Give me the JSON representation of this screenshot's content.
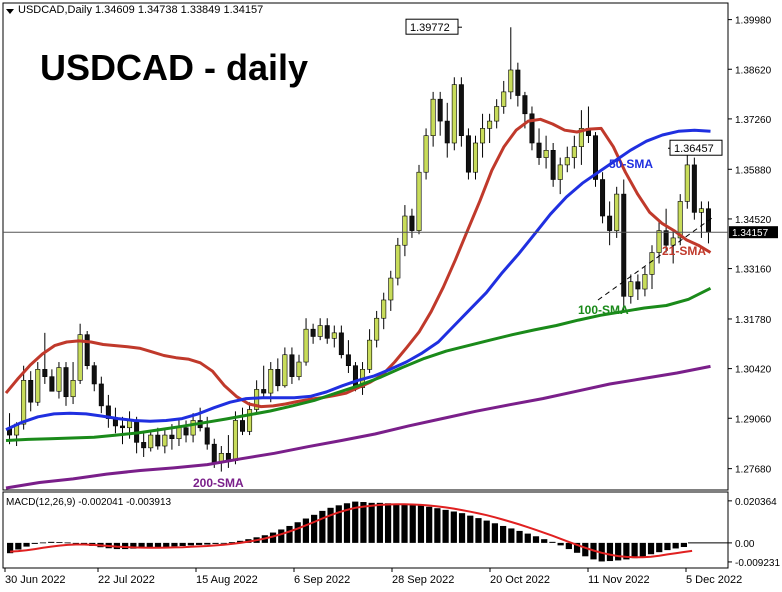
{
  "window": {
    "header": "USDCAD,Daily  1.34609 1.34738 1.33849 1.34157",
    "menu_icon": "triangle-down-icon"
  },
  "overlay_title": "USDCAD - daily",
  "colors": {
    "sma21": "#c0392b",
    "sma50": "#1f2fe0",
    "sma100": "#1a8a1a",
    "sma200": "#7a1f8a",
    "macd_hist": "#000000",
    "macd_signal": "#e02020",
    "sma21_label": "#c0392b",
    "sma50_label": "#1f2fe0",
    "sma100_label": "#1a8a1a",
    "sma200_label": "#7a1f8a",
    "bull_body": "#c8dc5a",
    "bear_body": "#111111"
  },
  "chart_data": {
    "type": "line",
    "x_tick_labels": [
      "30 Jun 2022",
      "22 Jul 2022",
      "15 Aug 2022",
      "6 Sep 2022",
      "28 Sep 2022",
      "20 Oct 2022",
      "11 Nov 2022",
      "5 Dec 2022"
    ],
    "y_tick_labels": [
      "1.39980",
      "1.38620",
      "1.37260",
      "1.35880",
      "1.34520",
      "1.33160",
      "1.31780",
      "1.30420",
      "1.29060",
      "1.27680"
    ],
    "ylim": [
      1.2715,
      1.4038
    ],
    "last_price_label": "1.34157",
    "last_price": 1.34157,
    "annotations": [
      {
        "text": "1.39772",
        "value": 1.39772
      },
      {
        "text": "1.36457",
        "value": 1.36457
      }
    ],
    "series": [
      {
        "name": "21-SMA",
        "values": [
          1.2975,
          1.3015,
          1.3052,
          1.3082,
          1.3105,
          1.3115,
          1.3118,
          1.3115,
          1.3108,
          1.3105,
          1.3102,
          1.3098,
          1.3088,
          1.3078,
          1.3072,
          1.3068,
          1.3058,
          1.3035,
          1.2995,
          1.2965,
          1.2945,
          1.2938,
          1.294,
          1.2945,
          1.2952,
          1.2958,
          1.2962,
          1.2968,
          1.2975,
          1.299,
          1.3005,
          1.3025,
          1.306,
          1.31,
          1.3142,
          1.3198,
          1.3265,
          1.334,
          1.342,
          1.35,
          1.3585,
          1.365,
          1.3695,
          1.372,
          1.3725,
          1.3712,
          1.3695,
          1.369,
          1.3698,
          1.37,
          1.365,
          1.358,
          1.352,
          1.347,
          1.344,
          1.342,
          1.3395,
          1.338,
          1.336
        ]
      },
      {
        "name": "50-SMA",
        "values": [
          1.2875,
          1.2895,
          1.291,
          1.2918,
          1.292,
          1.2918,
          1.2912,
          1.2905,
          1.29,
          1.2898,
          1.29,
          1.2905,
          1.2918,
          1.2935,
          1.295,
          1.296,
          1.2962,
          1.2962,
          1.2962,
          1.2966,
          1.2978,
          1.2995,
          1.301,
          1.3022,
          1.304,
          1.306,
          1.3085,
          1.3115,
          1.316,
          1.3205,
          1.325,
          1.3305,
          1.3355,
          1.341,
          1.3465,
          1.3512,
          1.355,
          1.358,
          1.361,
          1.364,
          1.3665,
          1.3682,
          1.3692,
          1.3695,
          1.3692
        ]
      },
      {
        "name": "100-SMA",
        "values": [
          1.2845,
          1.2848,
          1.285,
          1.2852,
          1.2854,
          1.286,
          1.2866,
          1.2875,
          1.2884,
          1.2894,
          1.2904,
          1.2915,
          1.2926,
          1.294,
          1.2955,
          1.2975,
          1.2995,
          1.3018,
          1.3045,
          1.307,
          1.309,
          1.3105,
          1.312,
          1.3135,
          1.3148,
          1.316,
          1.3175,
          1.3188,
          1.3198,
          1.3208,
          1.3215,
          1.3232,
          1.3262
        ]
      },
      {
        "name": "200-SMA",
        "values": [
          1.2715,
          1.273,
          1.274,
          1.2753,
          1.2763,
          1.277,
          1.2779,
          1.2795,
          1.281,
          1.2828,
          1.2845,
          1.2863,
          1.2885,
          1.2905,
          1.2925,
          1.2943,
          1.296,
          1.298,
          1.3,
          1.3015,
          1.303,
          1.3048
        ]
      }
    ],
    "series_labels": {
      "sma21": "21-SMA",
      "sma50": "50-SMA",
      "sma100": "100-SMA",
      "sma200": "200-SMA"
    }
  },
  "macd": {
    "header": "MACD(12,26,9) -0.002041 -0.003913",
    "y_tick_labels": [
      "0.020364",
      "0.00",
      "-0.009231"
    ],
    "ylim": [
      -0.0112,
      0.0232
    ],
    "hist": [
      -0.005,
      -0.0032,
      -0.0018,
      -0.0005,
      0.0002,
      0.0005,
      0.0004,
      0.0002,
      -0.0002,
      -0.0008,
      -0.0015,
      -0.0021,
      -0.0026,
      -0.003,
      -0.003,
      -0.0028,
      -0.0027,
      -0.0025,
      -0.0022,
      -0.002,
      -0.0017,
      -0.0015,
      -0.0012,
      -0.001,
      -0.0008,
      -0.0005,
      -0.0001,
      0.0004,
      0.001,
      0.0018,
      0.0027,
      0.0037,
      0.005,
      0.0065,
      0.0082,
      0.01,
      0.0118,
      0.0136,
      0.0155,
      0.017,
      0.0182,
      0.0192,
      0.02,
      0.0198,
      0.0194,
      0.0194,
      0.0192,
      0.019,
      0.0188,
      0.0185,
      0.0182,
      0.0175,
      0.0168,
      0.016,
      0.0152,
      0.0144,
      0.0132,
      0.012,
      0.0108,
      0.0095,
      0.0082,
      0.007,
      0.0058,
      0.0045,
      0.0032,
      0.0018,
      0.0005,
      -0.0012,
      -0.003,
      -0.0048,
      -0.0065,
      -0.008,
      -0.009,
      -0.0088,
      -0.0085,
      -0.008,
      -0.0074,
      -0.0066,
      -0.0055,
      -0.0045,
      -0.0035,
      -0.0027,
      -0.002
    ],
    "signal": [
      -0.0042,
      -0.004,
      -0.0036,
      -0.003,
      -0.0024,
      -0.0018,
      -0.0013,
      -0.001,
      -0.0008,
      -0.0008,
      -0.001,
      -0.0012,
      -0.0015,
      -0.0018,
      -0.002,
      -0.0022,
      -0.0023,
      -0.0024,
      -0.0024,
      -0.0023,
      -0.0022,
      -0.0021,
      -0.0019,
      -0.0017,
      -0.0015,
      -0.0012,
      -0.0009,
      -0.0005,
      0.0,
      0.0006,
      0.0013,
      0.0021,
      0.0031,
      0.0042,
      0.0055,
      0.0069,
      0.0085,
      0.0101,
      0.0118,
      0.0134,
      0.0148,
      0.016,
      0.017,
      0.0176,
      0.018,
      0.0184,
      0.0186,
      0.0187,
      0.0187,
      0.0186,
      0.0184,
      0.0181,
      0.0177,
      0.0172,
      0.0166,
      0.0159,
      0.0151,
      0.0143,
      0.0134,
      0.0124,
      0.0113,
      0.0101,
      0.0089,
      0.0076,
      0.0063,
      0.0049,
      0.0035,
      0.002,
      0.0005,
      -0.001,
      -0.0024,
      -0.0037,
      -0.0048,
      -0.0057,
      -0.0064,
      -0.0068,
      -0.007,
      -0.007,
      -0.0067,
      -0.0062,
      -0.0056,
      -0.005,
      -0.0044,
      -0.0039
    ]
  },
  "candles": [
    [
      1.288,
      1.292,
      1.2835,
      1.286
    ],
    [
      1.286,
      1.2895,
      1.283,
      1.289
    ],
    [
      1.289,
      1.305,
      1.2875,
      1.301
    ],
    [
      1.301,
      1.3035,
      1.2925,
      1.295
    ],
    [
      1.295,
      1.306,
      1.294,
      1.304
    ],
    [
      1.304,
      1.314,
      1.3,
      1.302
    ],
    [
      1.302,
      1.304,
      1.299,
      1.298
    ],
    [
      1.298,
      1.306,
      1.296,
      1.3045
    ],
    [
      1.3045,
      1.306,
      1.294,
      1.2965
    ],
    [
      1.2965,
      1.306,
      1.2945,
      1.301
    ],
    [
      1.301,
      1.3165,
      1.3,
      1.3135
    ],
    [
      1.3135,
      1.3145,
      1.304,
      1.305
    ],
    [
      1.305,
      1.306,
      1.298,
      1.3
    ],
    [
      1.3,
      1.302,
      1.292,
      1.294
    ],
    [
      1.294,
      1.297,
      1.288,
      1.2905
    ],
    [
      1.2905,
      1.2935,
      1.2865,
      1.2885
    ],
    [
      1.2885,
      1.291,
      1.2835,
      1.288
    ],
    [
      1.288,
      1.2925,
      1.285,
      1.29
    ],
    [
      1.29,
      1.291,
      1.281,
      1.284
    ],
    [
      1.284,
      1.287,
      1.28,
      1.2825
    ],
    [
      1.2825,
      1.2875,
      1.2815,
      1.286
    ],
    [
      1.286,
      1.288,
      1.282,
      1.283
    ],
    [
      1.283,
      1.288,
      1.281,
      1.286
    ],
    [
      1.286,
      1.289,
      1.282,
      1.285
    ],
    [
      1.285,
      1.29,
      1.283,
      1.288
    ],
    [
      1.288,
      1.29,
      1.284,
      1.286
    ],
    [
      1.286,
      1.292,
      1.284,
      1.29
    ],
    [
      1.29,
      1.2935,
      1.287,
      1.288
    ],
    [
      1.288,
      1.291,
      1.282,
      1.2835
    ],
    [
      1.2835,
      1.285,
      1.277,
      1.2785
    ],
    [
      1.2785,
      1.283,
      1.276,
      1.281
    ],
    [
      1.281,
      1.286,
      1.277,
      1.279
    ],
    [
      1.279,
      1.2925,
      1.278,
      1.29
    ],
    [
      1.29,
      1.2935,
      1.286,
      1.287
    ],
    [
      1.287,
      1.295,
      1.286,
      1.293
    ],
    [
      1.293,
      1.301,
      1.292,
      1.2985
    ],
    [
      1.2985,
      1.305,
      1.296,
      1.2975
    ],
    [
      1.2975,
      1.306,
      1.295,
      1.304
    ],
    [
      1.304,
      1.307,
      1.298,
      1.2995
    ],
    [
      1.2995,
      1.31,
      1.299,
      1.308
    ],
    [
      1.308,
      1.31,
      1.3,
      1.302
    ],
    [
      1.302,
      1.308,
      1.301,
      1.306
    ],
    [
      1.306,
      1.318,
      1.305,
      1.315
    ],
    [
      1.315,
      1.3165,
      1.311,
      1.313
    ],
    [
      1.313,
      1.318,
      1.312,
      1.316
    ],
    [
      1.316,
      1.318,
      1.311,
      1.3125
    ],
    [
      1.3125,
      1.316,
      1.31,
      1.314
    ],
    [
      1.314,
      1.316,
      1.307,
      1.308
    ],
    [
      1.308,
      1.312,
      1.303,
      1.305
    ],
    [
      1.305,
      1.306,
      1.298,
      1.299
    ],
    [
      1.299,
      1.306,
      1.297,
      1.304
    ],
    [
      1.304,
      1.315,
      1.303,
      1.312
    ],
    [
      1.312,
      1.32,
      1.31,
      1.318
    ],
    [
      1.318,
      1.325,
      1.315,
      1.323
    ],
    [
      1.323,
      1.331,
      1.32,
      1.329
    ],
    [
      1.329,
      1.34,
      1.327,
      1.338
    ],
    [
      1.338,
      1.349,
      1.335,
      1.346
    ],
    [
      1.346,
      1.348,
      1.34,
      1.342
    ],
    [
      1.342,
      1.36,
      1.341,
      1.358
    ],
    [
      1.358,
      1.37,
      1.356,
      1.368
    ],
    [
      1.368,
      1.38,
      1.365,
      1.378
    ],
    [
      1.378,
      1.38,
      1.368,
      1.372
    ],
    [
      1.372,
      1.377,
      1.362,
      1.366
    ],
    [
      1.366,
      1.384,
      1.364,
      1.382
    ],
    [
      1.382,
      1.384,
      1.365,
      1.368
    ],
    [
      1.368,
      1.37,
      1.356,
      1.358
    ],
    [
      1.358,
      1.368,
      1.356,
      1.366
    ],
    [
      1.366,
      1.374,
      1.362,
      1.37
    ],
    [
      1.37,
      1.374,
      1.366,
      1.372
    ],
    [
      1.372,
      1.378,
      1.37,
      1.376
    ],
    [
      1.376,
      1.383,
      1.374,
      1.38
    ],
    [
      1.38,
      1.3977,
      1.378,
      1.386
    ],
    [
      1.386,
      1.388,
      1.376,
      1.379
    ],
    [
      1.379,
      1.38,
      1.37,
      1.374
    ],
    [
      1.374,
      1.376,
      1.364,
      1.366
    ],
    [
      1.366,
      1.37,
      1.36,
      1.362
    ],
    [
      1.362,
      1.368,
      1.359,
      1.364
    ],
    [
      1.364,
      1.366,
      1.354,
      1.356
    ],
    [
      1.356,
      1.362,
      1.352,
      1.36
    ],
    [
      1.36,
      1.365,
      1.358,
      1.362
    ],
    [
      1.362,
      1.368,
      1.359,
      1.365
    ],
    [
      1.365,
      1.375,
      1.36,
      1.37
    ],
    [
      1.37,
      1.376,
      1.366,
      1.368
    ],
    [
      1.368,
      1.369,
      1.354,
      1.356
    ],
    [
      1.356,
      1.358,
      1.344,
      1.346
    ],
    [
      1.346,
      1.35,
      1.338,
      1.342
    ],
    [
      1.342,
      1.354,
      1.34,
      1.352
    ],
    [
      1.352,
      1.356,
      1.32,
      1.324
    ],
    [
      1.324,
      1.33,
      1.322,
      1.328
    ],
    [
      1.328,
      1.33,
      1.323,
      1.326
    ],
    [
      1.326,
      1.332,
      1.324,
      1.33
    ],
    [
      1.33,
      1.338,
      1.326,
      1.336
    ],
    [
      1.336,
      1.345,
      1.333,
      1.342
    ],
    [
      1.342,
      1.348,
      1.336,
      1.338
    ],
    [
      1.338,
      1.342,
      1.333,
      1.34
    ],
    [
      1.34,
      1.352,
      1.338,
      1.35
    ],
    [
      1.35,
      1.3646,
      1.348,
      1.36
    ],
    [
      1.36,
      1.362,
      1.345,
      1.347
    ],
    [
      1.347,
      1.35,
      1.34,
      1.348
    ],
    [
      1.348,
      1.35,
      1.3385,
      1.3416
    ]
  ]
}
